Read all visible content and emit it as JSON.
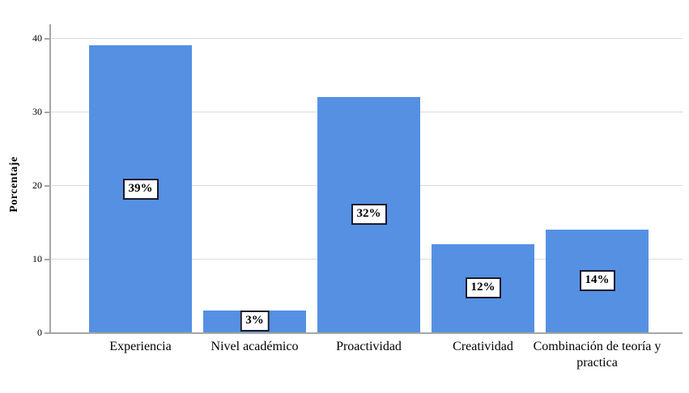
{
  "colors": {
    "background": "#ffffff",
    "bar": "#5590e2",
    "gridline": "#dcdcdc",
    "axis": "#a6a6a6",
    "value_label_border": "#1a1a2e",
    "value_label_bg": "#ffffff",
    "text": "#000000"
  },
  "chart_data": {
    "type": "bar",
    "title": "",
    "xlabel": "",
    "ylabel": "Porcentaje",
    "categories": [
      "Experiencia",
      "Nivel académico",
      "Proactividad",
      "Creatividad",
      "Combinación de teoría y practica"
    ],
    "values": [
      39,
      3,
      32,
      12,
      14
    ],
    "value_labels": [
      "39%",
      "3%",
      "32%",
      "12%",
      "14%"
    ],
    "yticks": [
      0,
      10,
      20,
      30,
      40
    ],
    "ylim": [
      0,
      42
    ],
    "grid": "horizontal",
    "legend": "none"
  }
}
